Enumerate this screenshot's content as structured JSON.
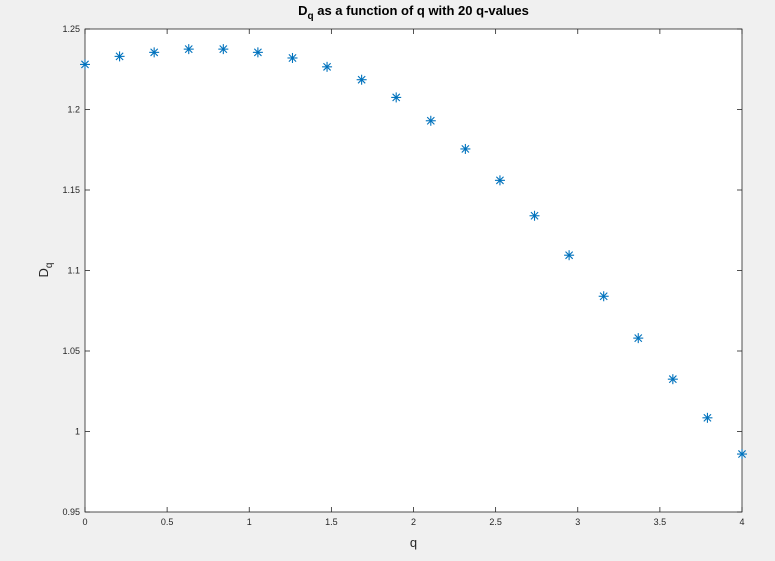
{
  "chart_data": {
    "type": "scatter",
    "title": {
      "main": "D",
      "subscript": "q",
      "rest": " as a function of q with 20 q-values"
    },
    "xlabel": "q",
    "ylabel": {
      "main": "D",
      "subscript": "q"
    },
    "xlim": [
      0,
      4
    ],
    "ylim": [
      0.95,
      1.25
    ],
    "xticks": [
      0,
      0.5,
      1,
      1.5,
      2,
      2.5,
      3,
      3.5,
      4
    ],
    "xtick_labels": [
      "0",
      "0.5",
      "1",
      "1.5",
      "2",
      "2.5",
      "3",
      "3.5",
      "4"
    ],
    "yticks": [
      0.95,
      1,
      1.05,
      1.1,
      1.15,
      1.2,
      1.25
    ],
    "ytick_labels": [
      "0.95",
      "1",
      "1.05",
      "1.1",
      "1.15",
      "1.2",
      "1.25"
    ],
    "grid": false,
    "marker": "asterisk",
    "color": "#0072BD",
    "series": [
      {
        "x": [
          0,
          0.2105,
          0.4211,
          0.6316,
          0.8421,
          1.0526,
          1.2632,
          1.4737,
          1.6842,
          1.8947,
          2.1053,
          2.3158,
          2.5263,
          2.7368,
          2.9474,
          3.1579,
          3.3684,
          3.5789,
          3.7895,
          4.0
        ],
        "y": [
          1.228,
          1.233,
          1.2355,
          1.2375,
          1.2375,
          1.2355,
          1.232,
          1.2265,
          1.2185,
          1.2075,
          1.193,
          1.1755,
          1.156,
          1.134,
          1.1095,
          1.084,
          1.058,
          1.0325,
          1.0085,
          0.986
        ]
      }
    ]
  }
}
